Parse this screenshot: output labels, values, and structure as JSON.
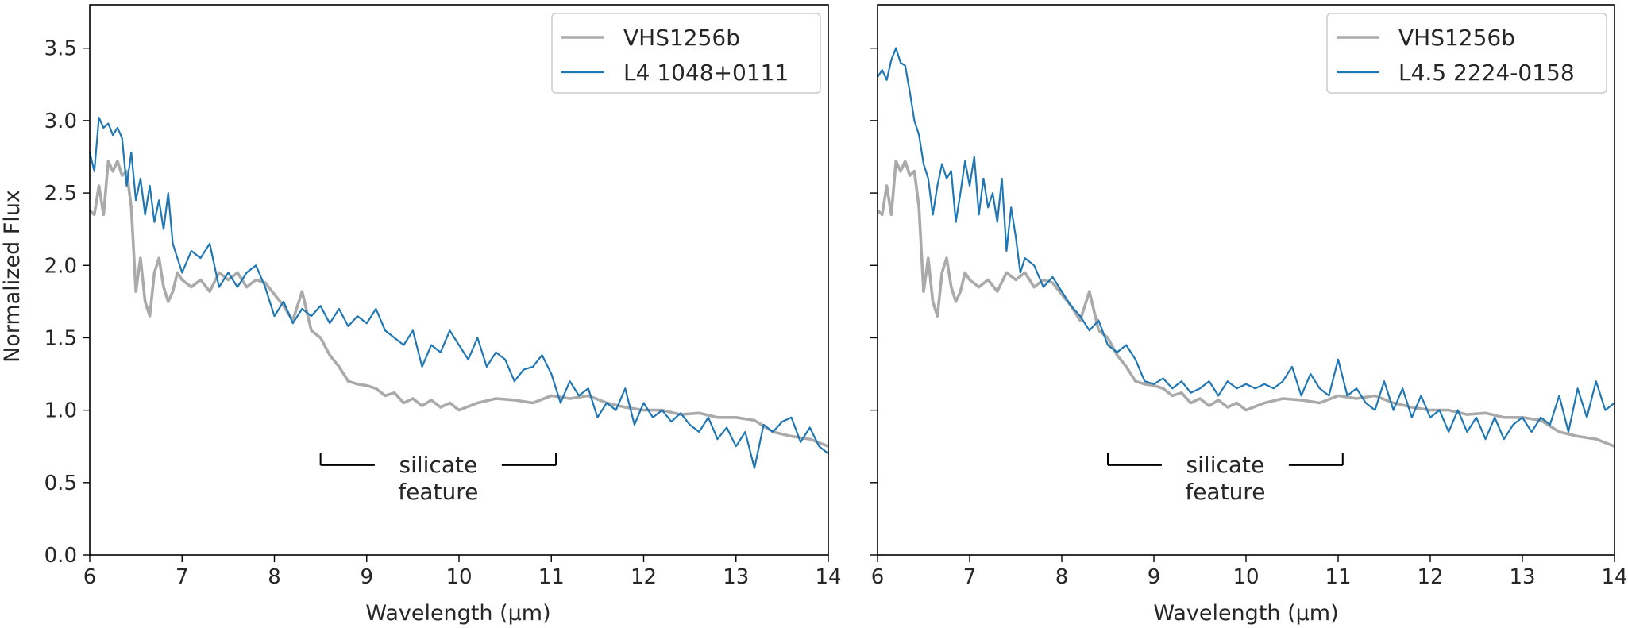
{
  "chart_data": [
    {
      "type": "line",
      "xlabel": "Wavelength (μm)",
      "ylabel": "Normalized Flux",
      "xlim": [
        6,
        14
      ],
      "ylim": [
        0.0,
        3.8
      ],
      "xticks": [
        "6",
        "7",
        "8",
        "9",
        "10",
        "11",
        "12",
        "13",
        "14"
      ],
      "yticks": [
        "0.0",
        "0.5",
        "1.0",
        "1.5",
        "2.0",
        "2.5",
        "3.0",
        "3.5"
      ],
      "legend_position": "top-right",
      "annotation": {
        "line1": "silicate",
        "line2": "feature",
        "x_range": [
          8.5,
          11.05
        ],
        "y": 0.62
      },
      "series": [
        {
          "name": "VHS1256b",
          "color": "#aaaaaa",
          "x": [
            6.0,
            6.05,
            6.1,
            6.15,
            6.2,
            6.25,
            6.3,
            6.35,
            6.4,
            6.45,
            6.5,
            6.55,
            6.6,
            6.65,
            6.7,
            6.75,
            6.8,
            6.85,
            6.9,
            6.95,
            7.0,
            7.1,
            7.2,
            7.3,
            7.4,
            7.5,
            7.6,
            7.7,
            7.8,
            7.9,
            8.0,
            8.1,
            8.2,
            8.3,
            8.4,
            8.5,
            8.6,
            8.7,
            8.8,
            8.9,
            9.0,
            9.1,
            9.2,
            9.3,
            9.4,
            9.5,
            9.6,
            9.7,
            9.8,
            9.9,
            10.0,
            10.2,
            10.4,
            10.6,
            10.8,
            11.0,
            11.2,
            11.4,
            11.6,
            11.8,
            12.0,
            12.2,
            12.4,
            12.6,
            12.8,
            13.0,
            13.2,
            13.4,
            13.6,
            13.8,
            14.0
          ],
          "y": [
            2.38,
            2.35,
            2.55,
            2.35,
            2.72,
            2.65,
            2.72,
            2.62,
            2.65,
            2.4,
            1.82,
            2.05,
            1.75,
            1.65,
            1.95,
            2.05,
            1.85,
            1.75,
            1.82,
            1.95,
            1.9,
            1.85,
            1.9,
            1.82,
            1.95,
            1.9,
            1.95,
            1.85,
            1.9,
            1.88,
            1.8,
            1.72,
            1.62,
            1.82,
            1.55,
            1.5,
            1.38,
            1.3,
            1.2,
            1.18,
            1.17,
            1.15,
            1.1,
            1.12,
            1.05,
            1.08,
            1.03,
            1.07,
            1.02,
            1.05,
            1.0,
            1.05,
            1.08,
            1.07,
            1.05,
            1.1,
            1.08,
            1.1,
            1.05,
            1.02,
            1.0,
            1.0,
            0.97,
            0.98,
            0.95,
            0.95,
            0.93,
            0.85,
            0.82,
            0.8,
            0.75
          ]
        },
        {
          "name": "L4 1048+0111",
          "color": "#1f77b4",
          "x": [
            6.0,
            6.05,
            6.1,
            6.15,
            6.2,
            6.25,
            6.3,
            6.35,
            6.4,
            6.45,
            6.5,
            6.55,
            6.6,
            6.65,
            6.7,
            6.75,
            6.8,
            6.85,
            6.9,
            6.95,
            7.0,
            7.1,
            7.2,
            7.3,
            7.4,
            7.5,
            7.6,
            7.7,
            7.8,
            7.9,
            8.0,
            8.1,
            8.2,
            8.3,
            8.4,
            8.5,
            8.6,
            8.7,
            8.8,
            8.9,
            9.0,
            9.1,
            9.2,
            9.3,
            9.4,
            9.5,
            9.6,
            9.7,
            9.8,
            9.9,
            10.0,
            10.1,
            10.2,
            10.3,
            10.4,
            10.5,
            10.6,
            10.7,
            10.8,
            10.9,
            11.0,
            11.1,
            11.2,
            11.3,
            11.4,
            11.5,
            11.6,
            11.7,
            11.8,
            11.9,
            12.0,
            12.1,
            12.2,
            12.3,
            12.4,
            12.5,
            12.6,
            12.7,
            12.8,
            12.9,
            13.0,
            13.1,
            13.2,
            13.3,
            13.4,
            13.5,
            13.6,
            13.7,
            13.8,
            13.9,
            14.0
          ],
          "y": [
            2.78,
            2.65,
            3.02,
            2.95,
            2.98,
            2.9,
            2.95,
            2.88,
            2.55,
            2.78,
            2.45,
            2.6,
            2.35,
            2.55,
            2.3,
            2.45,
            2.25,
            2.5,
            2.15,
            2.05,
            1.95,
            2.1,
            2.05,
            2.15,
            1.85,
            1.95,
            1.85,
            1.95,
            2.0,
            1.85,
            1.65,
            1.75,
            1.6,
            1.7,
            1.65,
            1.72,
            1.6,
            1.7,
            1.58,
            1.65,
            1.6,
            1.7,
            1.55,
            1.5,
            1.45,
            1.55,
            1.3,
            1.45,
            1.4,
            1.55,
            1.45,
            1.35,
            1.5,
            1.3,
            1.4,
            1.35,
            1.2,
            1.28,
            1.3,
            1.38,
            1.25,
            1.05,
            1.2,
            1.1,
            1.15,
            0.95,
            1.05,
            1.0,
            1.15,
            0.9,
            1.05,
            0.95,
            1.0,
            0.92,
            0.98,
            0.9,
            0.85,
            0.95,
            0.8,
            0.88,
            0.75,
            0.85,
            0.6,
            0.9,
            0.85,
            0.92,
            0.95,
            0.78,
            0.88,
            0.75,
            0.7
          ]
        }
      ]
    },
    {
      "type": "line",
      "xlabel": "Wavelength (μm)",
      "ylabel": "",
      "xlim": [
        6,
        14
      ],
      "ylim": [
        0.0,
        3.8
      ],
      "xticks": [
        "6",
        "7",
        "8",
        "9",
        "10",
        "11",
        "12",
        "13",
        "14"
      ],
      "yticks": [],
      "legend_position": "top-right",
      "annotation": {
        "line1": "silicate",
        "line2": "feature",
        "x_range": [
          8.5,
          11.05
        ],
        "y": 0.62
      },
      "series": [
        {
          "name": "VHS1256b",
          "color": "#aaaaaa",
          "x": [
            6.0,
            6.05,
            6.1,
            6.15,
            6.2,
            6.25,
            6.3,
            6.35,
            6.4,
            6.45,
            6.5,
            6.55,
            6.6,
            6.65,
            6.7,
            6.75,
            6.8,
            6.85,
            6.9,
            6.95,
            7.0,
            7.1,
            7.2,
            7.3,
            7.4,
            7.5,
            7.6,
            7.7,
            7.8,
            7.9,
            8.0,
            8.1,
            8.2,
            8.3,
            8.4,
            8.5,
            8.6,
            8.7,
            8.8,
            8.9,
            9.0,
            9.1,
            9.2,
            9.3,
            9.4,
            9.5,
            9.6,
            9.7,
            9.8,
            9.9,
            10.0,
            10.2,
            10.4,
            10.6,
            10.8,
            11.0,
            11.2,
            11.4,
            11.6,
            11.8,
            12.0,
            12.2,
            12.4,
            12.6,
            12.8,
            13.0,
            13.2,
            13.4,
            13.6,
            13.8,
            14.0
          ],
          "y": [
            2.38,
            2.35,
            2.55,
            2.35,
            2.72,
            2.65,
            2.72,
            2.62,
            2.65,
            2.4,
            1.82,
            2.05,
            1.75,
            1.65,
            1.95,
            2.05,
            1.85,
            1.75,
            1.82,
            1.95,
            1.9,
            1.85,
            1.9,
            1.82,
            1.95,
            1.9,
            1.95,
            1.85,
            1.9,
            1.88,
            1.8,
            1.72,
            1.62,
            1.82,
            1.55,
            1.5,
            1.38,
            1.3,
            1.2,
            1.18,
            1.17,
            1.15,
            1.1,
            1.12,
            1.05,
            1.08,
            1.03,
            1.07,
            1.02,
            1.05,
            1.0,
            1.05,
            1.08,
            1.07,
            1.05,
            1.1,
            1.08,
            1.1,
            1.05,
            1.02,
            1.0,
            1.0,
            0.97,
            0.98,
            0.95,
            0.95,
            0.93,
            0.85,
            0.82,
            0.8,
            0.75
          ]
        },
        {
          "name": "L4.5 2224-0158",
          "color": "#1f77b4",
          "x": [
            6.0,
            6.05,
            6.1,
            6.15,
            6.2,
            6.25,
            6.3,
            6.35,
            6.4,
            6.45,
            6.5,
            6.55,
            6.6,
            6.65,
            6.7,
            6.75,
            6.8,
            6.85,
            6.9,
            6.95,
            7.0,
            7.05,
            7.1,
            7.15,
            7.2,
            7.25,
            7.3,
            7.35,
            7.4,
            7.45,
            7.5,
            7.55,
            7.6,
            7.7,
            7.8,
            7.9,
            8.0,
            8.1,
            8.2,
            8.3,
            8.4,
            8.5,
            8.6,
            8.7,
            8.8,
            8.9,
            9.0,
            9.1,
            9.2,
            9.3,
            9.4,
            9.5,
            9.6,
            9.7,
            9.8,
            9.9,
            10.0,
            10.1,
            10.2,
            10.3,
            10.4,
            10.5,
            10.6,
            10.7,
            10.8,
            10.9,
            11.0,
            11.1,
            11.2,
            11.3,
            11.4,
            11.5,
            11.6,
            11.7,
            11.8,
            11.9,
            12.0,
            12.1,
            12.2,
            12.3,
            12.4,
            12.5,
            12.6,
            12.7,
            12.8,
            12.9,
            13.0,
            13.1,
            13.2,
            13.3,
            13.4,
            13.5,
            13.6,
            13.7,
            13.8,
            13.9,
            14.0
          ],
          "y": [
            3.3,
            3.35,
            3.28,
            3.42,
            3.5,
            3.4,
            3.38,
            3.2,
            3.0,
            2.9,
            2.7,
            2.6,
            2.35,
            2.55,
            2.7,
            2.6,
            2.65,
            2.3,
            2.5,
            2.72,
            2.55,
            2.75,
            2.35,
            2.6,
            2.4,
            2.5,
            2.3,
            2.6,
            2.1,
            2.4,
            2.2,
            1.95,
            2.05,
            2.0,
            1.85,
            1.92,
            1.82,
            1.72,
            1.65,
            1.55,
            1.62,
            1.45,
            1.4,
            1.45,
            1.35,
            1.2,
            1.18,
            1.22,
            1.15,
            1.2,
            1.12,
            1.15,
            1.2,
            1.1,
            1.2,
            1.15,
            1.18,
            1.15,
            1.18,
            1.15,
            1.2,
            1.3,
            1.1,
            1.25,
            1.15,
            1.1,
            1.35,
            1.1,
            1.15,
            1.05,
            1.0,
            1.2,
            1.0,
            1.15,
            0.95,
            1.1,
            0.95,
            1.0,
            0.85,
            1.0,
            0.85,
            0.95,
            0.8,
            0.95,
            0.8,
            0.9,
            0.95,
            0.85,
            0.95,
            0.9,
            1.1,
            0.85,
            1.15,
            0.95,
            1.2,
            1.0,
            1.05
          ]
        }
      ]
    }
  ]
}
